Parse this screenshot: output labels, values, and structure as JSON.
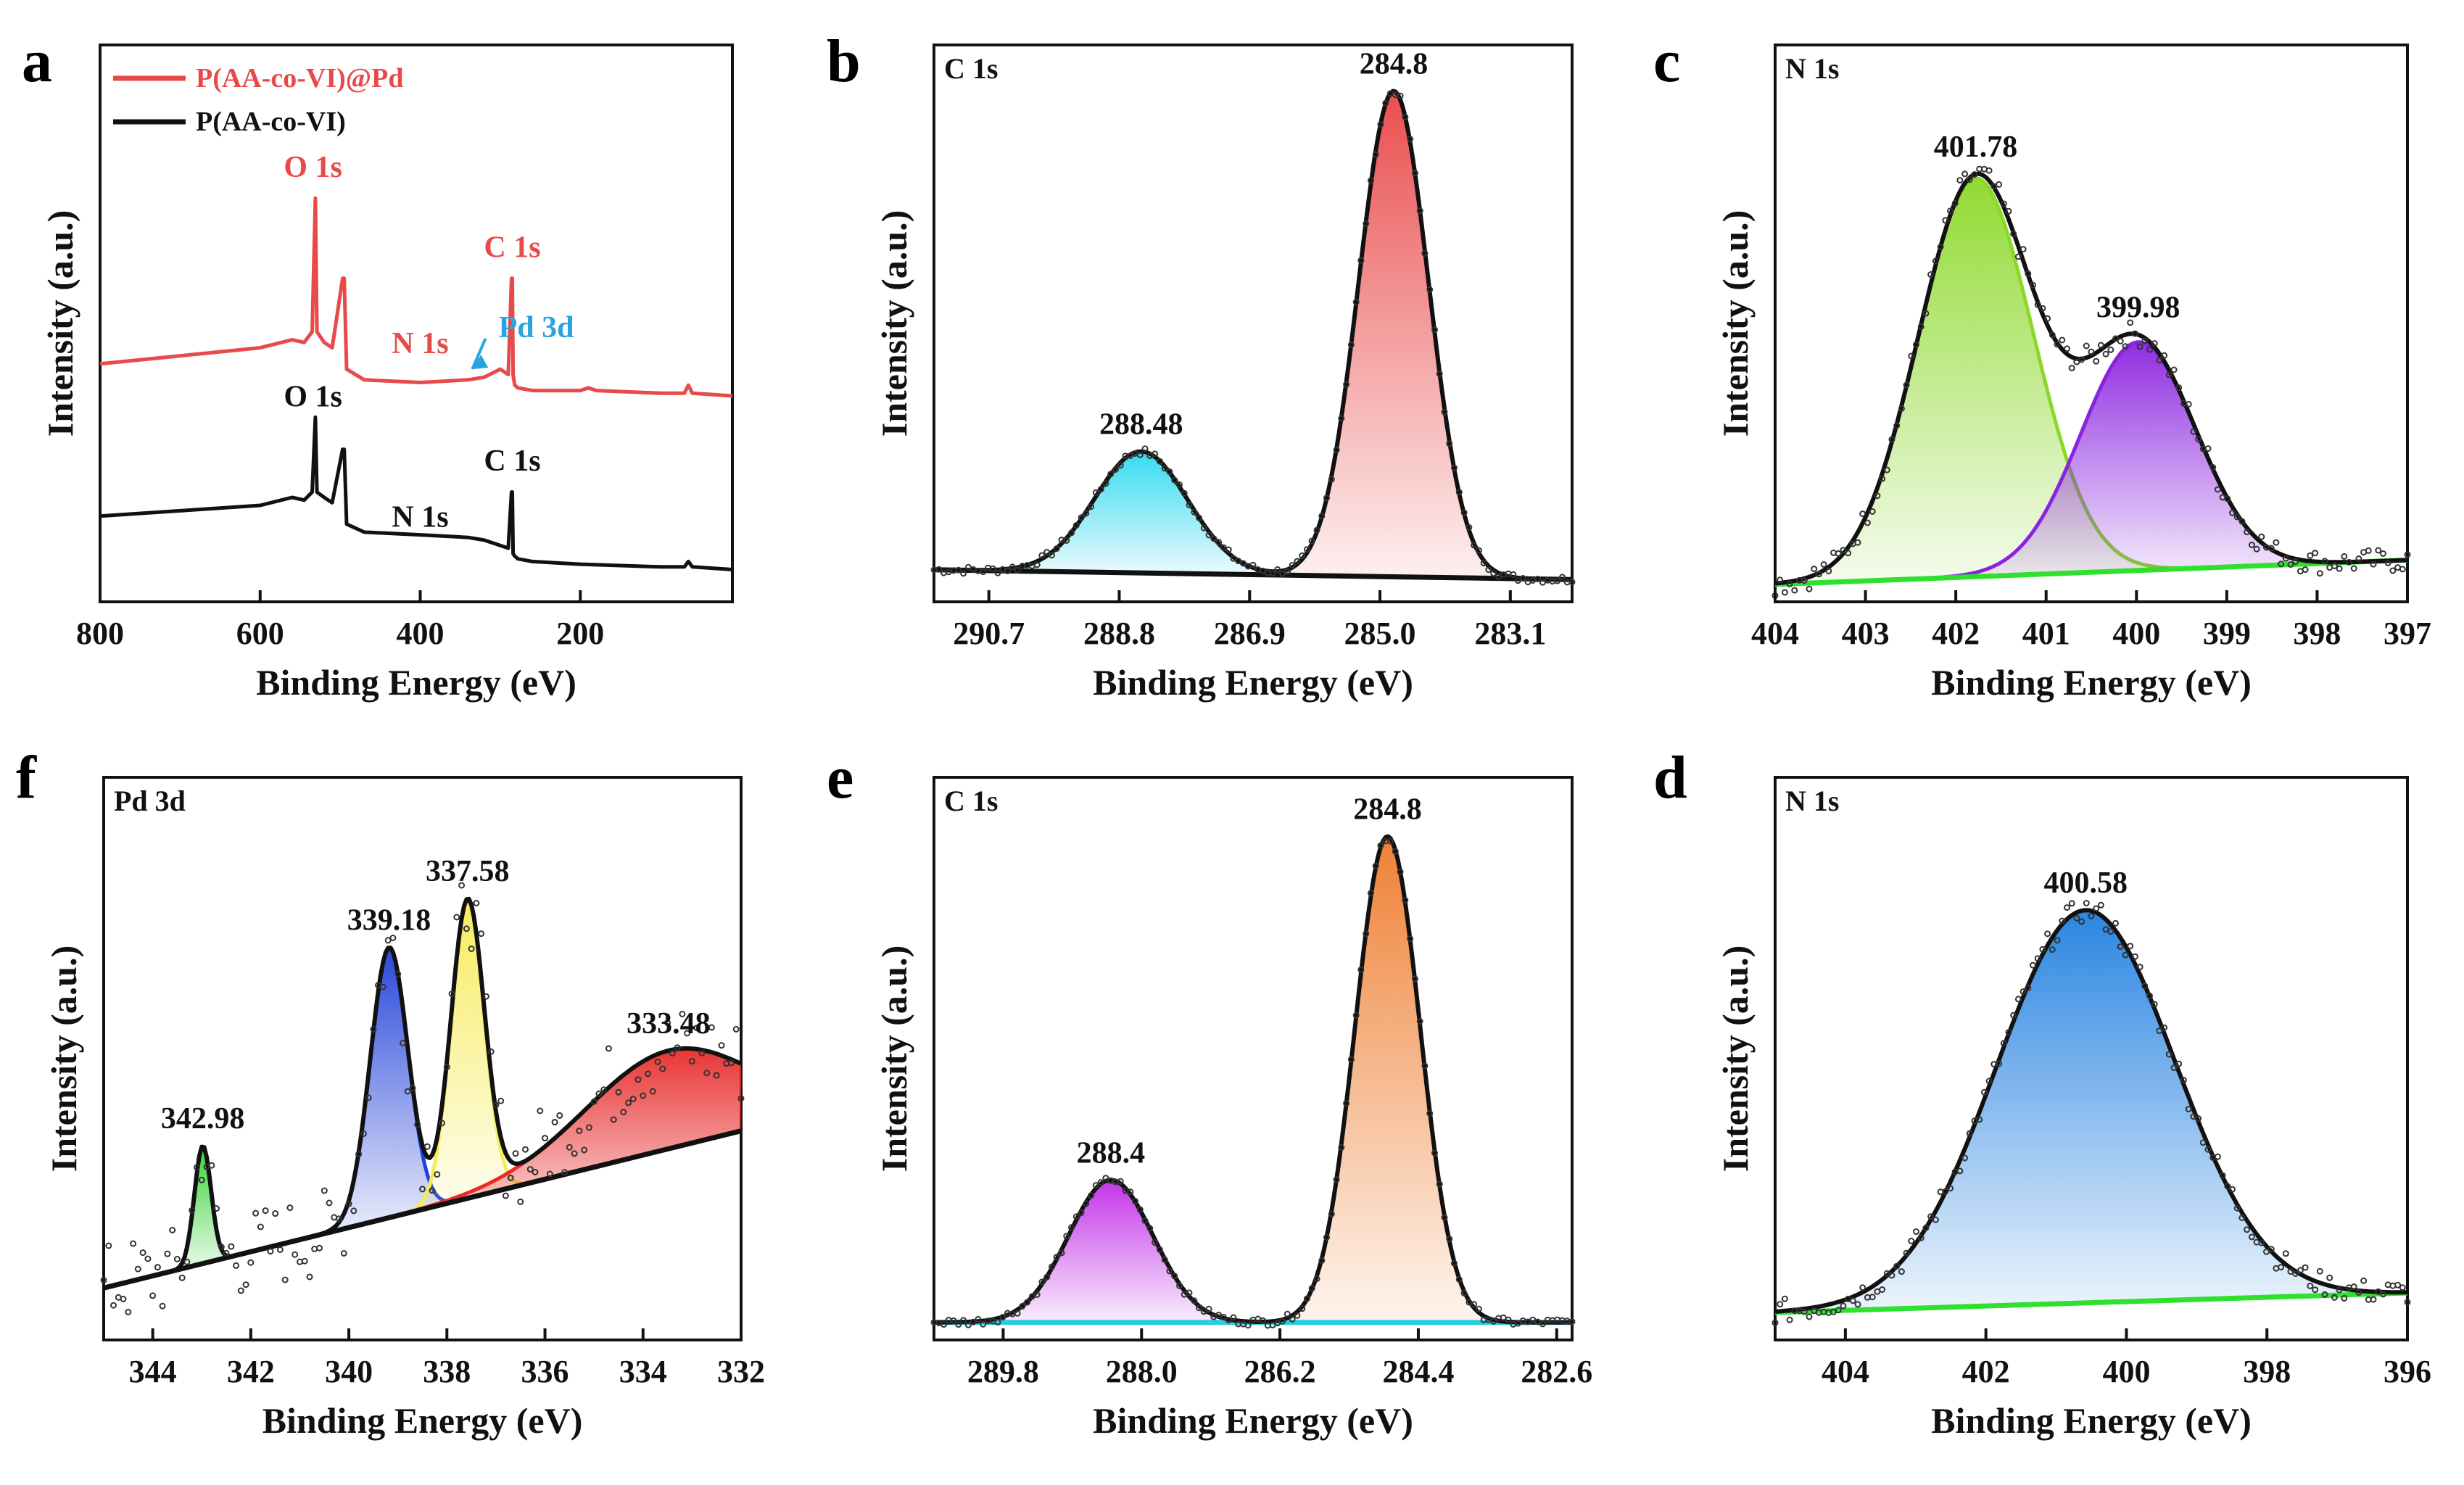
{
  "chart_data": [
    {
      "panel": "a",
      "type": "line",
      "xlabel": "Binding Energy (eV)",
      "ylabel": "Intensity (a.u.)",
      "xlim": [
        800,
        10
      ],
      "ylim": [
        0,
        1
      ],
      "xticks": [
        "800",
        "600",
        "400",
        "200"
      ],
      "yticks": false,
      "legend_position": "top-left",
      "legend": [
        {
          "label": "P(AA-co-VI)@Pd",
          "color": "#e84a4a"
        },
        {
          "label": "P(AA-co-VI)",
          "color": "#111111"
        }
      ],
      "series": [
        {
          "name": "P(AA-co-VI)@Pd",
          "color": "#e84a4a",
          "x": [
            800,
            700,
            600,
            560,
            545,
            535,
            531,
            529,
            520,
            510,
            497,
            495,
            492,
            470,
            400,
            340,
            320,
            300,
            290,
            286,
            285,
            284,
            282,
            278,
            260,
            200,
            190,
            180,
            100,
            70,
            65,
            60,
            10
          ],
          "y": [
            0.44,
            0.455,
            0.47,
            0.485,
            0.48,
            0.5,
            0.75,
            0.5,
            0.48,
            0.47,
            0.6,
            0.6,
            0.43,
            0.41,
            0.405,
            0.41,
            0.415,
            0.43,
            0.42,
            0.6,
            0.6,
            0.42,
            0.4,
            0.395,
            0.39,
            0.39,
            0.395,
            0.39,
            0.385,
            0.385,
            0.4,
            0.385,
            0.38
          ]
        },
        {
          "name": "P(AA-co-VI)",
          "color": "#111111",
          "x": [
            800,
            700,
            600,
            560,
            545,
            535,
            531,
            529,
            520,
            510,
            497,
            495,
            492,
            470,
            400,
            340,
            320,
            300,
            290,
            286,
            285,
            284,
            282,
            278,
            260,
            200,
            100,
            70,
            65,
            60,
            10
          ],
          "y": [
            0.155,
            0.165,
            0.175,
            0.19,
            0.185,
            0.2,
            0.34,
            0.2,
            0.19,
            0.18,
            0.28,
            0.28,
            0.14,
            0.125,
            0.12,
            0.115,
            0.11,
            0.1,
            0.095,
            0.2,
            0.2,
            0.085,
            0.08,
            0.075,
            0.07,
            0.065,
            0.06,
            0.06,
            0.07,
            0.06,
            0.055
          ]
        }
      ],
      "annotations": [
        {
          "text": "O 1s",
          "x": 534,
          "y": 0.79,
          "color": "#e84a4a"
        },
        {
          "text": "C 1s",
          "x": 285,
          "y": 0.64,
          "color": "#e84a4a"
        },
        {
          "text": "N 1s",
          "x": 400,
          "y": 0.46,
          "color": "#e84a4a"
        },
        {
          "text": "Pd 3d",
          "x": 255,
          "y": 0.49,
          "color": "#2aa4e0"
        },
        {
          "text": "O 1s",
          "x": 534,
          "y": 0.36,
          "color": "#111111"
        },
        {
          "text": "C 1s",
          "x": 285,
          "y": 0.24,
          "color": "#111111"
        },
        {
          "text": "N 1s",
          "x": 400,
          "y": 0.135,
          "color": "#111111"
        }
      ]
    },
    {
      "panel": "b",
      "type": "area",
      "corner_label": "C 1s",
      "xlabel": "Binding Energy (eV)",
      "ylabel": "Intensity (a.u.)",
      "xlim": [
        291.5,
        282.2
      ],
      "ylim": [
        0,
        1.1
      ],
      "xticks": [
        "290.7",
        "288.8",
        "286.9",
        "285.0",
        "283.1"
      ],
      "baseline": {
        "color": "#111111",
        "y_start": 0.06,
        "y_end": 0.04
      },
      "peaks": [
        {
          "label": "288.48",
          "center": 288.48,
          "height": 0.25,
          "fwhm": 1.6,
          "fill": "#2ad8ef"
        },
        {
          "label": "284.8",
          "center": 284.8,
          "height": 1.0,
          "fwhm": 1.2,
          "fill": "#e94545"
        }
      ],
      "envelope_color": "#111111"
    },
    {
      "panel": "c",
      "type": "area",
      "corner_label": "N 1s",
      "xlabel": "Binding Energy (eV)",
      "ylabel": "Intensity (a.u.)",
      "xlim": [
        404,
        397
      ],
      "ylim": [
        0,
        1.1
      ],
      "xticks": [
        "404",
        "403",
        "402",
        "401",
        "400",
        "399",
        "398",
        "397"
      ],
      "baseline": {
        "color": "#2fe02f",
        "y_start": 0.03,
        "y_end": 0.08
      },
      "peaks": [
        {
          "label": "401.78",
          "center": 401.78,
          "height": 0.82,
          "fwhm": 1.5,
          "fill": "#8bd82a"
        },
        {
          "label": "399.98",
          "center": 399.98,
          "height": 0.47,
          "fwhm": 1.5,
          "fill": "#8a22e0"
        }
      ],
      "envelope_color": "#111111"
    },
    {
      "panel": "f",
      "type": "area",
      "corner_label": "Pd 3d",
      "xlabel": "Binding Energy (eV)",
      "ylabel": "Intensity (a.u.)",
      "xlim": [
        345,
        332
      ],
      "ylim": [
        0,
        1.1
      ],
      "xticks": [
        "344",
        "342",
        "340",
        "338",
        "336",
        "334",
        "332"
      ],
      "baseline": {
        "color": "#111111",
        "y_start": 0.1,
        "y_end": 0.42
      },
      "peaks": [
        {
          "label": "342.98",
          "center": 342.98,
          "height": 0.24,
          "fwhm": 0.4,
          "fill": "#2fd02f"
        },
        {
          "label": "339.18",
          "center": 339.18,
          "height": 0.55,
          "fwhm": 0.9,
          "fill": "#1f3fd8"
        },
        {
          "label": "337.58",
          "center": 337.58,
          "height": 0.6,
          "fwhm": 0.8,
          "fill": "#f6ec5a"
        },
        {
          "label": "333.48",
          "center": 333.48,
          "height": 0.2,
          "fwhm": 4.0,
          "fill": "#e82a2a"
        }
      ],
      "envelope_color": "#111111"
    },
    {
      "panel": "e",
      "type": "area",
      "corner_label": "C 1s",
      "xlabel": "Binding Energy (eV)",
      "ylabel": "Intensity (a.u.)",
      "xlim": [
        290.7,
        282.4
      ],
      "ylim": [
        0,
        1.1
      ],
      "xticks": [
        "289.8",
        "288.0",
        "286.2",
        "284.4",
        "282.6"
      ],
      "baseline": {
        "color": "#2acde0",
        "y_start": 0.03,
        "y_end": 0.03
      },
      "peaks": [
        {
          "label": "288.4",
          "center": 288.4,
          "height": 0.29,
          "fwhm": 1.3,
          "fill": "#c02ae8"
        },
        {
          "label": "284.8",
          "center": 284.8,
          "height": 0.99,
          "fwhm": 1.0,
          "fill": "#ee7a2a"
        }
      ],
      "envelope_color": "#111111"
    },
    {
      "panel": "d",
      "type": "area",
      "corner_label": "N 1s",
      "xlabel": "Binding Energy (eV)",
      "ylabel": "Intensity (a.u.)",
      "xlim": [
        405,
        396
      ],
      "ylim": [
        0,
        1.1
      ],
      "xticks": [
        "404",
        "402",
        "400",
        "398",
        "396"
      ],
      "baseline": {
        "color": "#2fe02f",
        "y_start": 0.05,
        "y_end": 0.09
      },
      "peaks": [
        {
          "label": "400.58",
          "center": 400.58,
          "height": 0.8,
          "fwhm": 3.0,
          "fill": "#1f7fe0"
        }
      ],
      "envelope_color": "#111111"
    }
  ]
}
